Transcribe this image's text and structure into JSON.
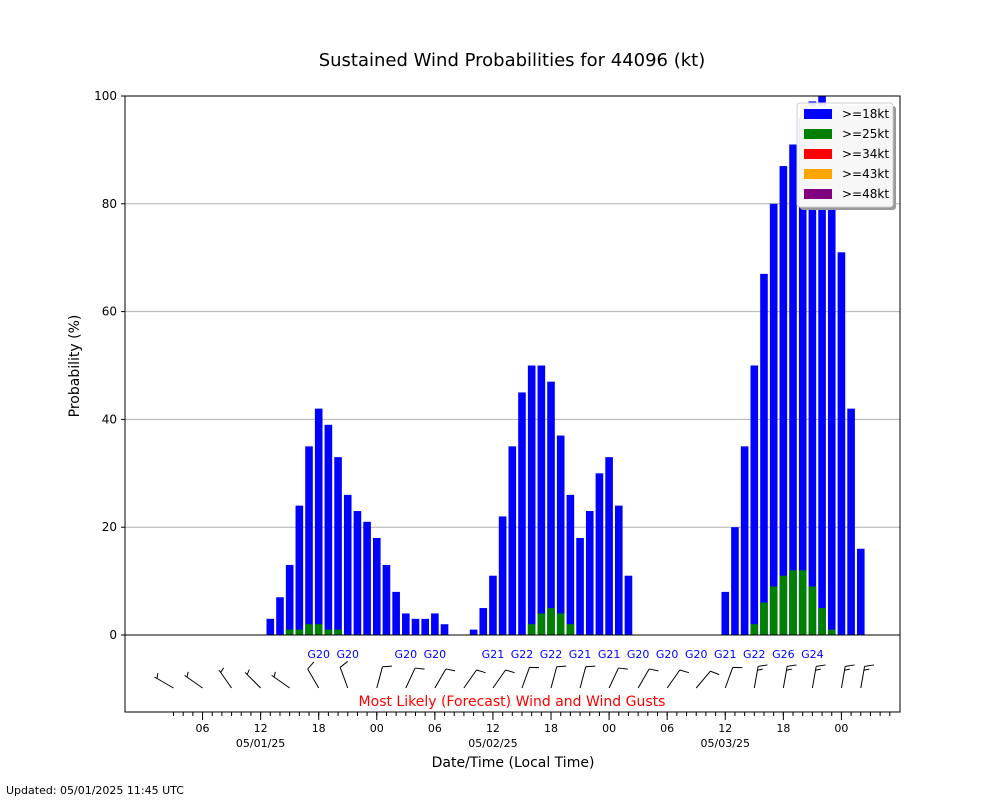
{
  "chart_data": {
    "type": "bar",
    "title": "Sustained Wind Probabilities for 44096 (kt)",
    "xlabel": "Date/Time (Local Time)",
    "ylabel": "Probability (%)",
    "ylim": [
      0,
      100
    ],
    "yticks": [
      0,
      20,
      40,
      60,
      80,
      100
    ],
    "grid": "horizontal",
    "legend_placement": "top-right",
    "x_tick_labels": [
      {
        "label": "06",
        "hour": 6
      },
      {
        "label": "12",
        "hour": 12,
        "date": "05/01/25"
      },
      {
        "label": "18",
        "hour": 18
      },
      {
        "label": "00",
        "hour": 24
      },
      {
        "label": "06",
        "hour": 30
      },
      {
        "label": "12",
        "hour": 36,
        "date": "05/02/25"
      },
      {
        "label": "18",
        "hour": 42
      },
      {
        "label": "00",
        "hour": 48
      },
      {
        "label": "06",
        "hour": 54
      },
      {
        "label": "12",
        "hour": 60,
        "date": "05/03/25"
      },
      {
        "label": "18",
        "hour": 66
      },
      {
        "label": "00",
        "hour": 72
      }
    ],
    "time_step_hours": 1,
    "time_start_hour": 3,
    "time_end_hour": 77,
    "series": [
      {
        "name": ">=18kt",
        "color": "#0000ff",
        "points": [
          [
            13,
            3
          ],
          [
            14,
            7
          ],
          [
            15,
            13
          ],
          [
            16,
            24
          ],
          [
            17,
            35
          ],
          [
            18,
            42
          ],
          [
            19,
            39
          ],
          [
            20,
            33
          ],
          [
            21,
            26
          ],
          [
            22,
            23
          ],
          [
            23,
            21
          ],
          [
            24,
            18
          ],
          [
            25,
            13
          ],
          [
            26,
            8
          ],
          [
            27,
            4
          ],
          [
            28,
            3
          ],
          [
            29,
            3
          ],
          [
            30,
            4
          ],
          [
            31,
            2
          ],
          [
            34,
            1
          ],
          [
            35,
            5
          ],
          [
            36,
            11
          ],
          [
            37,
            22
          ],
          [
            38,
            35
          ],
          [
            39,
            45
          ],
          [
            40,
            50
          ],
          [
            41,
            50
          ],
          [
            42,
            47
          ],
          [
            43,
            37
          ],
          [
            44,
            26
          ],
          [
            45,
            18
          ],
          [
            46,
            23
          ],
          [
            47,
            30
          ],
          [
            48,
            33
          ],
          [
            49,
            24
          ],
          [
            50,
            11
          ],
          [
            60,
            8
          ],
          [
            61,
            20
          ],
          [
            62,
            35
          ],
          [
            63,
            50
          ],
          [
            64,
            67
          ],
          [
            65,
            80
          ],
          [
            66,
            87
          ],
          [
            67,
            91
          ],
          [
            68,
            96
          ],
          [
            69,
            99
          ],
          [
            70,
            100
          ],
          [
            71,
            92
          ],
          [
            72,
            71
          ],
          [
            73,
            42
          ],
          [
            74,
            16
          ]
        ]
      },
      {
        "name": ">=25kt",
        "color": "#008000",
        "points": [
          [
            15,
            1
          ],
          [
            16,
            1
          ],
          [
            17,
            2
          ],
          [
            18,
            2
          ],
          [
            19,
            1
          ],
          [
            20,
            1
          ],
          [
            40,
            2
          ],
          [
            41,
            4
          ],
          [
            42,
            5
          ],
          [
            43,
            4
          ],
          [
            44,
            2
          ],
          [
            63,
            2
          ],
          [
            64,
            6
          ],
          [
            65,
            9
          ],
          [
            66,
            11
          ],
          [
            67,
            12
          ],
          [
            68,
            12
          ],
          [
            69,
            9
          ],
          [
            70,
            5
          ],
          [
            71,
            1
          ]
        ]
      },
      {
        "name": ">=34kt",
        "color": "#ff0000",
        "points": []
      },
      {
        "name": ">=43kt",
        "color": "#ffa500",
        "points": []
      },
      {
        "name": ">=48kt",
        "color": "#800080",
        "points": []
      }
    ],
    "gusts": [
      {
        "hour": 18,
        "label": "G20"
      },
      {
        "hour": 21,
        "label": "G20"
      },
      {
        "hour": 27,
        "label": "G20"
      },
      {
        "hour": 30,
        "label": "G20"
      },
      {
        "hour": 36,
        "label": "G21"
      },
      {
        "hour": 39,
        "label": "G22"
      },
      {
        "hour": 42,
        "label": "G22"
      },
      {
        "hour": 45,
        "label": "G21"
      },
      {
        "hour": 48,
        "label": "G21"
      },
      {
        "hour": 51,
        "label": "G20"
      },
      {
        "hour": 54,
        "label": "G20"
      },
      {
        "hour": 57,
        "label": "G20"
      },
      {
        "hour": 60,
        "label": "G21"
      },
      {
        "hour": 63,
        "label": "G22"
      },
      {
        "hour": 66,
        "label": "G26"
      },
      {
        "hour": 69,
        "label": "G24"
      }
    ],
    "wind_barbs": [
      {
        "hour": 3,
        "dir": 300,
        "speed": 5
      },
      {
        "hour": 6,
        "dir": 305,
        "speed": 5
      },
      {
        "hour": 9,
        "dir": 325,
        "speed": 5
      },
      {
        "hour": 12,
        "dir": 315,
        "speed": 5
      },
      {
        "hour": 15,
        "dir": 305,
        "speed": 5
      },
      {
        "hour": 18,
        "dir": 330,
        "speed": 10
      },
      {
        "hour": 21,
        "dir": 340,
        "speed": 10
      },
      {
        "hour": 24,
        "dir": 15,
        "speed": 10
      },
      {
        "hour": 27,
        "dir": 25,
        "speed": 10
      },
      {
        "hour": 30,
        "dir": 30,
        "speed": 10
      },
      {
        "hour": 33,
        "dir": 35,
        "speed": 10
      },
      {
        "hour": 36,
        "dir": 35,
        "speed": 10
      },
      {
        "hour": 39,
        "dir": 20,
        "speed": 10
      },
      {
        "hour": 42,
        "dir": 15,
        "speed": 10
      },
      {
        "hour": 45,
        "dir": 15,
        "speed": 10
      },
      {
        "hour": 48,
        "dir": 25,
        "speed": 10
      },
      {
        "hour": 51,
        "dir": 30,
        "speed": 10
      },
      {
        "hour": 54,
        "dir": 35,
        "speed": 10
      },
      {
        "hour": 57,
        "dir": 40,
        "speed": 10
      },
      {
        "hour": 60,
        "dir": 20,
        "speed": 10
      },
      {
        "hour": 63,
        "dir": 10,
        "speed": 15
      },
      {
        "hour": 66,
        "dir": 10,
        "speed": 15
      },
      {
        "hour": 69,
        "dir": 10,
        "speed": 15
      },
      {
        "hour": 72,
        "dir": 10,
        "speed": 15
      },
      {
        "hour": 74,
        "dir": 10,
        "speed": 15
      }
    ],
    "barb_caption": "Most Likely (Forecast) Wind and Wind Gusts",
    "barb_caption_color": "#ff0000"
  },
  "footer": {
    "updated_text": "Updated: 05/01/2025 11:45 UTC"
  }
}
